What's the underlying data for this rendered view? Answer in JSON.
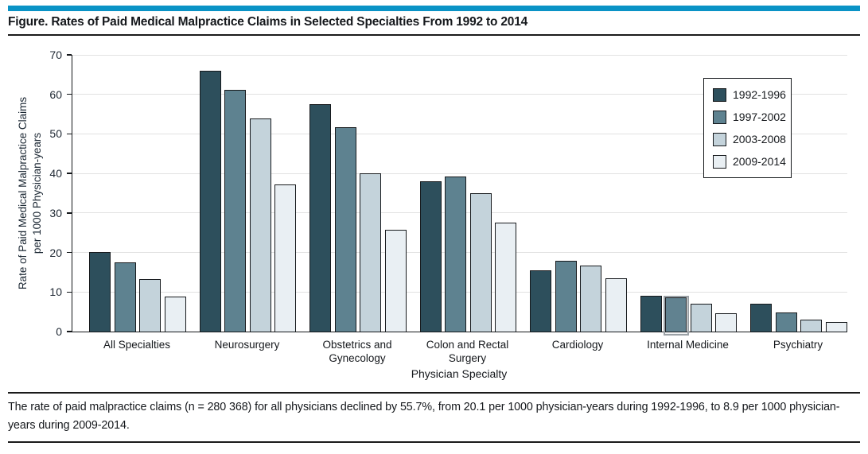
{
  "page": {
    "accent_color": "#0a93c6",
    "title": "Figure. Rates of Paid Medical Malpractice Claims in Selected Specialties From 1992 to 2014",
    "footnote": "The rate of paid malpractice claims (n = 280 368) for all physicians declined by 55.7%, from 20.1 per 1000 physician-years during 1992-1996, to 8.9 per 1000 physician-years during 2009-2014."
  },
  "chart_data": {
    "type": "bar",
    "title": "Rates of Paid Medical Malpractice Claims in Selected Specialties From 1992 to 2014",
    "categories": [
      "All Specialties",
      "Neurosurgery",
      "Obstetrics and Gynecology",
      "Colon and Rectal Surgery",
      "Cardiology",
      "Internal Medicine",
      "Psychiatry"
    ],
    "series": [
      {
        "name": "1992-1996",
        "color": "#2d4f5c",
        "values": [
          20.1,
          65.9,
          57.5,
          38.1,
          15.5,
          9.0,
          7.0
        ]
      },
      {
        "name": "1997-2002",
        "color": "#5e8290",
        "values": [
          17.5,
          61.2,
          51.6,
          39.2,
          17.9,
          8.6,
          4.9
        ]
      },
      {
        "name": "2003-2008",
        "color": "#c4d3db",
        "values": [
          13.2,
          54.0,
          40.0,
          35.0,
          16.6,
          7.1,
          3.1
        ]
      },
      {
        "name": "2009-2014",
        "color": "#e9eff3",
        "values": [
          8.9,
          37.2,
          25.7,
          27.5,
          13.5,
          4.6,
          2.4
        ]
      }
    ],
    "xlabel": "Physician Specialty",
    "ylabel": "Rate of Paid Medical Malpractice Claims per 1000 Physician-years",
    "ylabel_lines": [
      "Rate of Paid Medical Malpractice Claims",
      "per 1000 Physician-years"
    ],
    "ylim": [
      0,
      70
    ],
    "yticks": [
      0,
      10,
      20,
      30,
      40,
      50,
      60,
      70
    ],
    "grid": true,
    "legend_position": "top-right",
    "bar_outline_color": "#171a1d",
    "highlight": {
      "category": "Internal Medicine",
      "series": "1997-2002"
    }
  }
}
